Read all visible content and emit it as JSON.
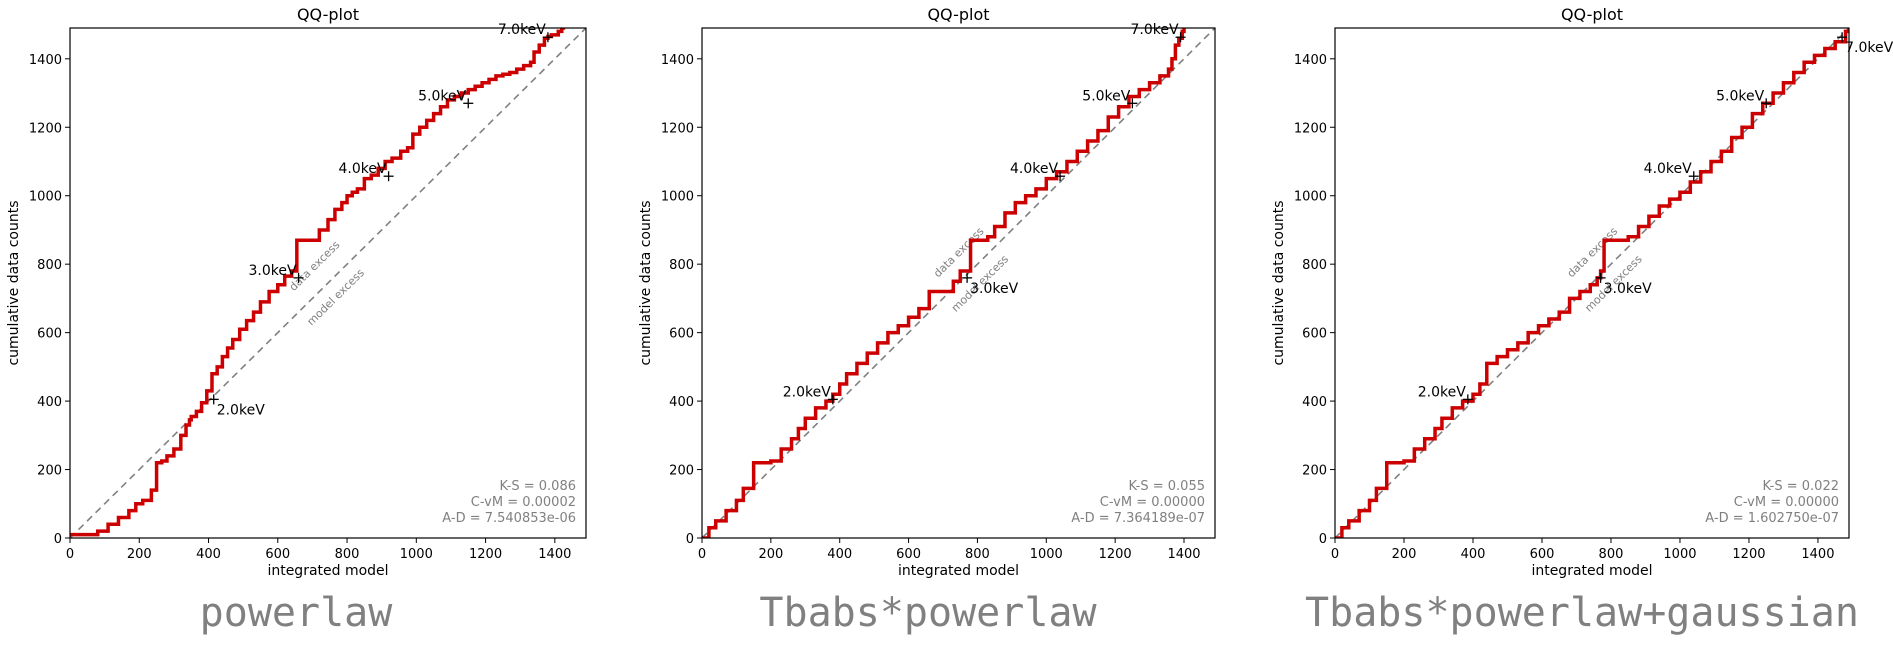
{
  "figure": {
    "captions": [
      "powerlaw",
      "Tbabs*powerlaw",
      "Tbabs*powerlaw+gaussian"
    ]
  },
  "colors": {
    "data_line": "#cc0000",
    "reference_line": "#808080",
    "stats_text": "#808080"
  },
  "chart_data": [
    {
      "type": "line",
      "title": "QQ-plot",
      "xlabel": "integrated model",
      "ylabel": "cumulative data counts",
      "xlim": [
        0,
        1490
      ],
      "ylim": [
        0,
        1490
      ],
      "xticks": [
        0,
        200,
        400,
        600,
        800,
        1000,
        1200,
        1400
      ],
      "yticks": [
        0,
        200,
        400,
        600,
        800,
        1000,
        1200,
        1400
      ],
      "grid": false,
      "reference_line": {
        "from": [
          0,
          0
        ],
        "to": [
          1490,
          1490
        ]
      },
      "reference_labels": {
        "above": "data excess",
        "below": "model excess",
        "at_x": 750
      },
      "energy_markers": [
        {
          "label": "2.0keV",
          "x": 415,
          "y": 405
        },
        {
          "label": "3.0keV",
          "x": 660,
          "y": 760
        },
        {
          "label": "4.0keV",
          "x": 920,
          "y": 1057
        },
        {
          "label": "5.0keV",
          "x": 1150,
          "y": 1270
        },
        {
          "label": "7.0keV",
          "x": 1380,
          "y": 1463
        }
      ],
      "series": [
        {
          "x": [
            0,
            50,
            80,
            110,
            140,
            170,
            190,
            210,
            235,
            250,
            265,
            280,
            300,
            320,
            335,
            345,
            350,
            365,
            380,
            395,
            410,
            425,
            440,
            455,
            470,
            490,
            510,
            530,
            550,
            575,
            600,
            620,
            640,
            655,
            665,
            675,
            700,
            720,
            745,
            765,
            785,
            800,
            815,
            830,
            850,
            870,
            890,
            910,
            930,
            955,
            975,
            990,
            1010,
            1030,
            1050,
            1070,
            1090,
            1110,
            1130,
            1150,
            1170,
            1190,
            1210,
            1230,
            1250,
            1270,
            1290,
            1310,
            1330,
            1340,
            1355,
            1370,
            1380,
            1390,
            1410,
            1420,
            1430
          ],
          "y": [
            10,
            10,
            20,
            40,
            60,
            80,
            100,
            110,
            140,
            220,
            225,
            240,
            260,
            300,
            330,
            345,
            355,
            370,
            395,
            430,
            480,
            500,
            530,
            555,
            580,
            610,
            635,
            660,
            690,
            720,
            740,
            765,
            780,
            870,
            870,
            870,
            870,
            900,
            930,
            960,
            980,
            1000,
            1010,
            1020,
            1050,
            1060,
            1080,
            1100,
            1110,
            1130,
            1140,
            1180,
            1200,
            1220,
            1240,
            1260,
            1280,
            1290,
            1300,
            1310,
            1320,
            1330,
            1340,
            1350,
            1355,
            1360,
            1370,
            1380,
            1390,
            1420,
            1440,
            1460,
            1465,
            1470,
            1480,
            1490,
            1490
          ]
        }
      ],
      "stats": [
        "K-S = 0.086",
        "C-vM = 0.00002",
        "A-D = 7.540853e-06"
      ]
    },
    {
      "type": "line",
      "title": "QQ-plot",
      "xlabel": "integrated model",
      "ylabel": "cumulative data counts",
      "xlim": [
        0,
        1490
      ],
      "ylim": [
        0,
        1490
      ],
      "xticks": [
        0,
        200,
        400,
        600,
        800,
        1000,
        1200,
        1400
      ],
      "yticks": [
        0,
        200,
        400,
        600,
        800,
        1000,
        1200,
        1400
      ],
      "grid": false,
      "reference_line": {
        "from": [
          0,
          0
        ],
        "to": [
          1490,
          1490
        ]
      },
      "reference_labels": {
        "above": "data excess",
        "below": "model excess",
        "at_x": 790
      },
      "energy_markers": [
        {
          "label": "2.0keV",
          "x": 380,
          "y": 405
        },
        {
          "label": "3.0keV",
          "x": 770,
          "y": 760
        },
        {
          "label": "4.0keV",
          "x": 1040,
          "y": 1057
        },
        {
          "label": "5.0keV",
          "x": 1250,
          "y": 1270
        },
        {
          "label": "7.0keV",
          "x": 1390,
          "y": 1463
        }
      ],
      "series": [
        {
          "x": [
            0,
            20,
            40,
            70,
            100,
            120,
            150,
            200,
            230,
            260,
            280,
            300,
            330,
            360,
            380,
            400,
            420,
            450,
            480,
            510,
            540,
            570,
            600,
            630,
            660,
            700,
            730,
            750,
            780,
            800,
            830,
            850,
            880,
            910,
            940,
            970,
            1000,
            1030,
            1060,
            1090,
            1120,
            1150,
            1180,
            1210,
            1240,
            1270,
            1300,
            1330,
            1355,
            1365,
            1375,
            1385,
            1395,
            1400
          ],
          "y": [
            0,
            30,
            50,
            80,
            110,
            145,
            220,
            225,
            260,
            290,
            320,
            350,
            380,
            400,
            420,
            450,
            480,
            510,
            540,
            570,
            600,
            620,
            645,
            670,
            720,
            720,
            750,
            780,
            870,
            870,
            880,
            910,
            950,
            980,
            1000,
            1020,
            1050,
            1070,
            1100,
            1130,
            1160,
            1190,
            1230,
            1260,
            1290,
            1310,
            1330,
            1350,
            1370,
            1400,
            1440,
            1460,
            1480,
            1490
          ]
        }
      ],
      "stats": [
        "K-S = 0.055",
        "C-vM = 0.00000",
        "A-D = 7.364189e-07"
      ]
    },
    {
      "type": "line",
      "title": "QQ-plot",
      "xlabel": "integrated model",
      "ylabel": "cumulative data counts",
      "xlim": [
        0,
        1490
      ],
      "ylim": [
        0,
        1490
      ],
      "xticks": [
        0,
        200,
        400,
        600,
        800,
        1000,
        1200,
        1400
      ],
      "yticks": [
        0,
        200,
        400,
        600,
        800,
        1000,
        1200,
        1400
      ],
      "grid": false,
      "reference_line": {
        "from": [
          0,
          0
        ],
        "to": [
          1490,
          1490
        ]
      },
      "reference_labels": {
        "above": "data excess",
        "below": "model excess",
        "at_x": 790
      },
      "energy_markers": [
        {
          "label": "2.0keV",
          "x": 385,
          "y": 405
        },
        {
          "label": "3.0keV",
          "x": 770,
          "y": 760
        },
        {
          "label": "4.0keV",
          "x": 1040,
          "y": 1057
        },
        {
          "label": "5.0keV",
          "x": 1250,
          "y": 1270
        },
        {
          "label": "7.0keV",
          "x": 1470,
          "y": 1463
        }
      ],
      "series": [
        {
          "x": [
            0,
            20,
            40,
            70,
            100,
            120,
            150,
            200,
            230,
            260,
            290,
            310,
            340,
            370,
            400,
            420,
            440,
            470,
            500,
            530,
            560,
            590,
            620,
            650,
            680,
            710,
            740,
            760,
            770,
            780,
            820,
            850,
            880,
            910,
            940,
            970,
            1000,
            1030,
            1060,
            1090,
            1120,
            1150,
            1180,
            1210,
            1240,
            1270,
            1300,
            1330,
            1360,
            1390,
            1420,
            1450,
            1480,
            1490
          ],
          "y": [
            0,
            30,
            50,
            80,
            110,
            145,
            220,
            225,
            260,
            290,
            320,
            350,
            380,
            400,
            420,
            450,
            510,
            530,
            550,
            570,
            600,
            620,
            640,
            660,
            700,
            720,
            740,
            760,
            780,
            870,
            870,
            880,
            910,
            940,
            970,
            990,
            1010,
            1040,
            1070,
            1100,
            1130,
            1170,
            1200,
            1240,
            1270,
            1300,
            1330,
            1360,
            1390,
            1410,
            1430,
            1450,
            1480,
            1490
          ]
        }
      ],
      "stats": [
        "K-S = 0.022",
        "C-vM = 0.00000",
        "A-D = 1.602750e-07"
      ]
    }
  ]
}
